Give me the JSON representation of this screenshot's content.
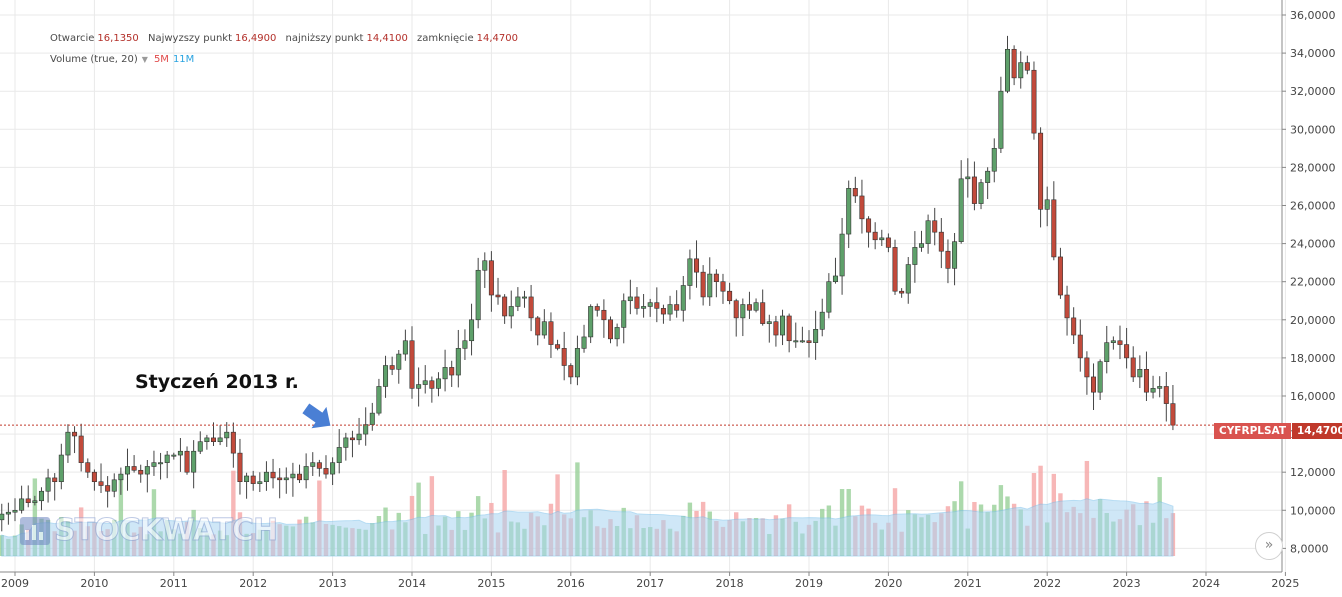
{
  "legend": {
    "open_label": "Otwarcie",
    "open_value": "16,1350",
    "high_label": "Najwyzszy punkt",
    "high_value": "16,4900",
    "low_label": "najniższy punkt",
    "low_value": "14,4100",
    "close_label": "zamknięcie",
    "close_value": "14,4700",
    "volume_label": "Volume (true, 20)",
    "volume_value_1": "5M",
    "volume_value_2": "11M"
  },
  "annotation": "Styczeń 2013 r.",
  "ticker": "CYFRPLSAT",
  "last_price": "14,4700",
  "watermark": "STOCKWATCH",
  "icons": {
    "scroll_icon": "»",
    "arrow_icon": "blue-arrow",
    "logo_icon": "bar-chart-logo"
  },
  "colors": {
    "up": "#5ea06a",
    "down": "#c24a3b",
    "wick": "#444444",
    "vol_up": "#97cf97",
    "vol_down": "#f5a5a5",
    "vol_ma_fill": "#a9d5f2",
    "last_line": "#c0392b",
    "arrow": "#4a7fd4"
  },
  "chart_data": {
    "type": "candlestick",
    "interval": "monthly",
    "y_axis_side": "right",
    "ylim": [
      7.6,
      36.0
    ],
    "yticks": [
      "8,0000",
      "10,0000",
      "12,0000",
      "14,0000",
      "16,0000",
      "18,0000",
      "20,0000",
      "22,0000",
      "24,0000",
      "26,0000",
      "28,0000",
      "30,0000",
      "32,0000",
      "34,0000",
      "36,0000"
    ],
    "xticks": [
      "2009",
      "2010",
      "2011",
      "2012",
      "2013",
      "2014",
      "2015",
      "2016",
      "2017",
      "2018",
      "2019",
      "2020",
      "2021",
      "2022",
      "2023",
      "2024",
      "2025"
    ],
    "x_range": [
      "2008-11",
      "2025-02"
    ],
    "last_close": 14.47,
    "close": [
      9.8,
      9.9,
      10.0,
      10.6,
      10.4,
      10.5,
      11.0,
      11.7,
      11.5,
      12.9,
      14.1,
      13.9,
      12.5,
      12.0,
      11.5,
      11.3,
      11.0,
      11.6,
      11.9,
      12.3,
      12.1,
      11.9,
      12.3,
      12.5,
      12.5,
      12.9,
      12.9,
      13.1,
      12.0,
      13.1,
      13.6,
      13.8,
      13.6,
      13.8,
      14.1,
      13.0,
      11.5,
      11.8,
      11.4,
      11.5,
      12.0,
      11.7,
      11.6,
      11.7,
      11.9,
      11.6,
      12.3,
      12.5,
      12.2,
      11.9,
      12.5,
      13.3,
      13.8,
      13.7,
      14.0,
      14.5,
      15.1,
      16.5,
      17.6,
      17.4,
      18.2,
      18.9,
      16.4,
      16.6,
      16.8,
      16.4,
      16.9,
      17.5,
      17.1,
      18.5,
      18.9,
      20.0,
      22.6,
      23.1,
      21.3,
      21.2,
      20.2,
      20.7,
      21.2,
      21.2,
      20.1,
      19.2,
      19.9,
      18.7,
      18.5,
      17.6,
      17.0,
      18.5,
      19.1,
      20.7,
      20.5,
      20.0,
      19.0,
      19.6,
      21.0,
      21.2,
      20.6,
      20.7,
      20.9,
      20.6,
      20.3,
      20.8,
      20.5,
      21.8,
      23.2,
      22.5,
      21.2,
      22.4,
      22.0,
      21.5,
      21.0,
      20.1,
      20.8,
      20.5,
      20.9,
      19.8,
      19.9,
      19.2,
      20.2,
      18.9,
      18.9,
      18.9,
      18.8,
      19.5,
      20.4,
      22.0,
      22.3,
      24.5,
      26.9,
      26.5,
      25.3,
      24.6,
      24.2,
      24.3,
      23.8,
      21.5,
      21.4,
      22.9,
      23.8,
      24.0,
      25.2,
      24.6,
      23.6,
      22.7,
      24.1,
      27.4,
      27.5,
      26.1,
      27.2,
      27.8,
      29.0,
      32.0,
      34.2,
      32.7,
      33.5,
      33.1,
      29.8,
      25.8,
      26.3,
      23.3,
      21.3,
      20.1,
      19.2,
      18.0,
      17.0,
      16.2,
      17.8,
      18.8,
      18.9,
      18.7,
      18.0,
      17.0,
      17.4,
      16.2,
      16.4,
      16.5,
      15.6,
      14.47
    ],
    "volume_note": "monthly volume bars with 20-period moving average (light blue area)"
  }
}
